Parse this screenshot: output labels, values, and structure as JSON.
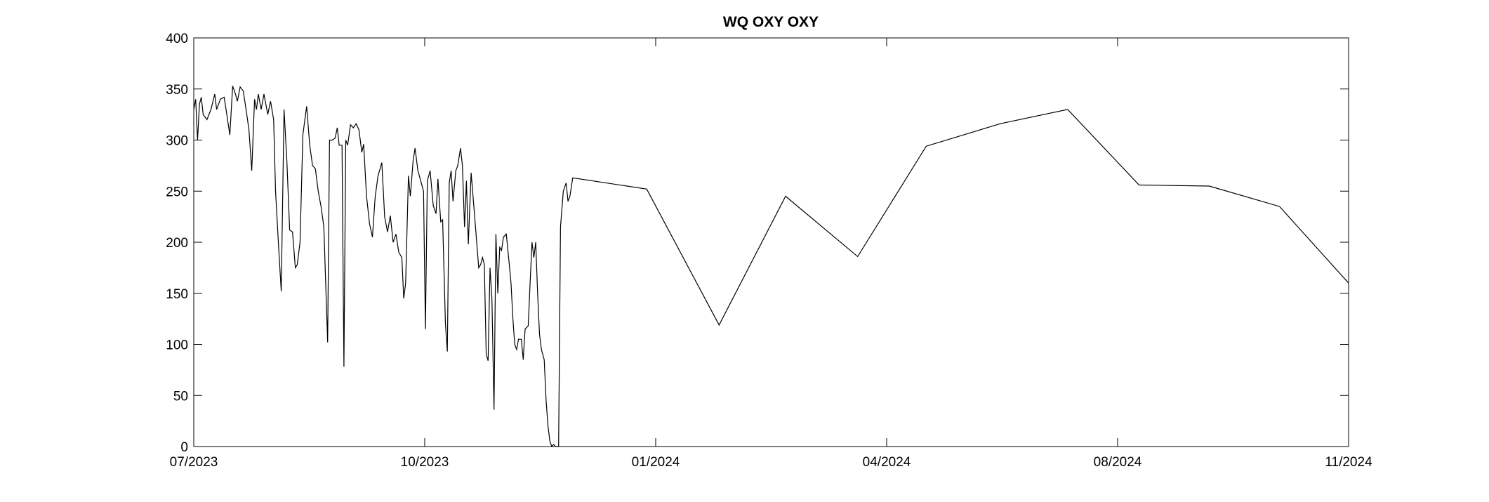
{
  "chart_data": {
    "type": "line",
    "title": "WQ OXY OXY",
    "color": "#000000",
    "x": [
      0,
      0.8,
      1.6,
      2.4,
      3.2,
      4.0,
      5.6,
      7.3,
      8.9,
      9.7,
      11.3,
      12.9,
      13.7,
      15.3,
      16.5,
      17.7,
      18.5,
      19.7,
      21.0,
      22.2,
      23.4,
      24.6,
      25.8,
      26.6,
      27.4,
      28.6,
      29.8,
      30.6,
      31.4,
      32.6,
      33.9,
      34.7,
      35.9,
      37.1,
      38.3,
      39.5,
      40.7,
      41.9,
      43.1,
      43.9,
      45.1,
      46.3,
      47.9,
      49.2,
      50.4,
      51.6,
      52.8,
      54.0,
      55.2,
      56.8,
      57.6,
      58.8,
      60.0,
      60.9,
      61.7,
      62.9,
      63.7,
      64.5,
      65.3,
      66.5,
      67.7,
      68.9,
      70.1,
      71.3,
      72.1,
      73.3,
      74.6,
      75.8,
      77.0,
      78.2,
      79.8,
      81.0,
      82.2,
      83.4,
      84.6,
      85.8,
      87.0,
      88.3,
      89.1,
      89.9,
      91.1,
      91.9,
      93.1,
      93.9,
      95.1,
      96.3,
      97.5,
      98.3,
      99.1,
      100.3,
      101.6,
      102.8,
      103.6,
      104.8,
      105.6,
      106.8,
      107.6,
      108.4,
      109.2,
      110.0,
      111.2,
      112.0,
      113.2,
      114.0,
      114.9,
      115.7,
      116.5,
      117.7,
      118.5,
      119.7,
      120.9,
      121.7,
      122.5,
      123.3,
      124.1,
      124.9,
      125.7,
      126.5,
      127.4,
      128.2,
      129.0,
      129.8,
      130.6,
      131.4,
      132.6,
      133.8,
      134.6,
      135.4,
      136.2,
      137.0,
      137.8,
      139.0,
      139.8,
      140.6,
      141.9,
      142.7,
      143.5,
      144.3,
      145.1,
      145.9,
      146.7,
      147.5,
      148.7,
      149.5,
      150.3,
      151.1,
      151.9,
      152.7,
      153.5,
      154.8,
      155.6,
      156.8,
      158.0,
      158.8,
      159.6,
      160.8,
      192.2,
      222.9,
      251.1,
      281.7,
      310.8,
      342.2,
      370.8,
      401.1,
      430.9,
      460.7,
      490.0
    ],
    "values": [
      330,
      340,
      300,
      335,
      342,
      325,
      320,
      330,
      345,
      330,
      340,
      342,
      330,
      305,
      353,
      345,
      338,
      352,
      348,
      330,
      310,
      270,
      340,
      330,
      345,
      330,
      345,
      335,
      325,
      338,
      320,
      250,
      200,
      152,
      330,
      280,
      212,
      210,
      175,
      178,
      200,
      305,
      333,
      295,
      275,
      272,
      250,
      235,
      215,
      102,
      300,
      300,
      302,
      312,
      295,
      295,
      78,
      300,
      295,
      315,
      312,
      316,
      310,
      288,
      296,
      245,
      218,
      205,
      245,
      265,
      278,
      225,
      210,
      226,
      200,
      208,
      190,
      185,
      145,
      160,
      265,
      245,
      280,
      292,
      270,
      260,
      250,
      115,
      260,
      270,
      236,
      228,
      262,
      220,
      222,
      120,
      93,
      258,
      270,
      240,
      270,
      275,
      292,
      275,
      215,
      260,
      198,
      268,
      245,
      210,
      175,
      178,
      185,
      178,
      90,
      84,
      175,
      145,
      36,
      208,
      150,
      195,
      192,
      205,
      208,
      180,
      160,
      125,
      100,
      95,
      105,
      105,
      85,
      115,
      118,
      160,
      200,
      185,
      200,
      150,
      110,
      95,
      85,
      45,
      20,
      5,
      0,
      2,
      0,
      0,
      215,
      250,
      258,
      240,
      245,
      263,
      252,
      119,
      245,
      186,
      294,
      316,
      330,
      256,
      255,
      235,
      160
    ],
    "xlim": [
      0,
      490
    ],
    "xticks": [
      {
        "value": 0,
        "label": "07/2023"
      },
      {
        "value": 98,
        "label": "10/2023"
      },
      {
        "value": 196,
        "label": "01/2024"
      },
      {
        "value": 294,
        "label": "04/2024"
      },
      {
        "value": 392,
        "label": "08/2024"
      },
      {
        "value": 490,
        "label": "11/2024"
      }
    ],
    "ylim": [
      0,
      400
    ],
    "yticks": [
      0,
      50,
      100,
      150,
      200,
      250,
      300,
      350,
      400
    ]
  }
}
